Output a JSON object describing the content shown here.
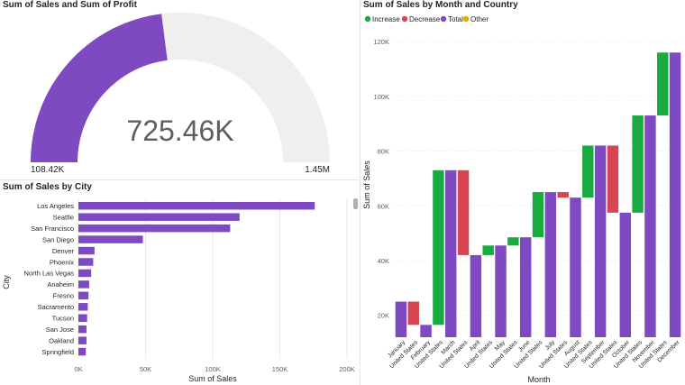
{
  "colors": {
    "purple": "#7f4ac1",
    "gauge_track": "#f0efee",
    "increase": "#1aab40",
    "decrease": "#d64550",
    "total": "#7f4ac1",
    "other": "#d9b300",
    "text": "#252423",
    "muted": "#605e5c",
    "grid": "#e9e9e9"
  },
  "gauge": {
    "title": "Sum of Sales and Sum of Profit",
    "value_label": "725.46K",
    "min_label": "108.42K",
    "max_label": "1.45M"
  },
  "city_chart": {
    "title": "Sum of Sales by City",
    "xlabel": "Sum of Sales",
    "ylabel": "City"
  },
  "waterfall": {
    "title": "Sum of Sales by Month and Country",
    "xlabel": "Month",
    "ylabel": "Sum of Sales"
  },
  "legend": {
    "increase": "Increase",
    "decrease": "Decrease",
    "total": "Total",
    "other": "Other"
  },
  "chart_data": [
    {
      "type": "gauge",
      "title": "Sum of Sales and Sum of Profit",
      "value": 725460,
      "min": 108420,
      "max": 1450000
    },
    {
      "type": "bar",
      "orientation": "horizontal",
      "title": "Sum of Sales by City",
      "xlabel": "Sum of Sales",
      "ylabel": "City",
      "categories": [
        "Los Angeles",
        "Seattle",
        "San Francisco",
        "San Diego",
        "Denver",
        "Phoenix",
        "North Las Vegas",
        "Anaheim",
        "Fresno",
        "Sacramento",
        "Tucson",
        "San Jose",
        "Oakland",
        "Springfield"
      ],
      "values": [
        176000,
        120000,
        113000,
        48000,
        12000,
        11000,
        9500,
        8000,
        7500,
        7000,
        6500,
        6000,
        6000,
        5500
      ],
      "xlim": [
        0,
        200000
      ],
      "xticks": [
        0,
        50000,
        100000,
        150000,
        200000
      ],
      "xtick_labels": [
        "0K",
        "50K",
        "100K",
        "150K",
        "200K"
      ]
    },
    {
      "type": "waterfall",
      "title": "Sum of Sales by Month and Country",
      "xlabel": "Month",
      "ylabel": "Sum of Sales",
      "legend": [
        "Increase",
        "Decrease",
        "Total",
        "Other"
      ],
      "ylim": [
        12000,
        123000
      ],
      "yticks": [
        20000,
        40000,
        60000,
        80000,
        100000,
        120000
      ],
      "ytick_labels": [
        "20K",
        "40K",
        "60K",
        "80K",
        "100K",
        "120K"
      ],
      "steps": [
        {
          "label": "January",
          "kind": "total",
          "from": 0,
          "to": 25000
        },
        {
          "label": "United States",
          "kind": "decrease",
          "from": 25000,
          "to": 16500
        },
        {
          "label": "February",
          "kind": "total",
          "from": 0,
          "to": 16500
        },
        {
          "label": "United States",
          "kind": "increase",
          "from": 16500,
          "to": 73000
        },
        {
          "label": "March",
          "kind": "total",
          "from": 0,
          "to": 73000
        },
        {
          "label": "United States",
          "kind": "decrease",
          "from": 73000,
          "to": 42000
        },
        {
          "label": "April",
          "kind": "total",
          "from": 0,
          "to": 42000
        },
        {
          "label": "United States",
          "kind": "increase",
          "from": 42000,
          "to": 45500
        },
        {
          "label": "May",
          "kind": "total",
          "from": 0,
          "to": 45500
        },
        {
          "label": "United States",
          "kind": "increase",
          "from": 45500,
          "to": 48500
        },
        {
          "label": "June",
          "kind": "total",
          "from": 0,
          "to": 48500
        },
        {
          "label": "United States",
          "kind": "increase",
          "from": 48500,
          "to": 65000
        },
        {
          "label": "July",
          "kind": "total",
          "from": 0,
          "to": 65000
        },
        {
          "label": "United States",
          "kind": "decrease",
          "from": 65000,
          "to": 63000
        },
        {
          "label": "August",
          "kind": "total",
          "from": 0,
          "to": 63000
        },
        {
          "label": "United States",
          "kind": "increase",
          "from": 63000,
          "to": 82000
        },
        {
          "label": "September",
          "kind": "total",
          "from": 0,
          "to": 82000
        },
        {
          "label": "United States",
          "kind": "decrease",
          "from": 82000,
          "to": 57500
        },
        {
          "label": "October",
          "kind": "total",
          "from": 0,
          "to": 57500
        },
        {
          "label": "United States",
          "kind": "increase",
          "from": 57500,
          "to": 93000
        },
        {
          "label": "November",
          "kind": "total",
          "from": 0,
          "to": 93000
        },
        {
          "label": "United States",
          "kind": "increase",
          "from": 93000,
          "to": 116000
        },
        {
          "label": "December",
          "kind": "total",
          "from": 0,
          "to": 116000
        }
      ]
    }
  ]
}
